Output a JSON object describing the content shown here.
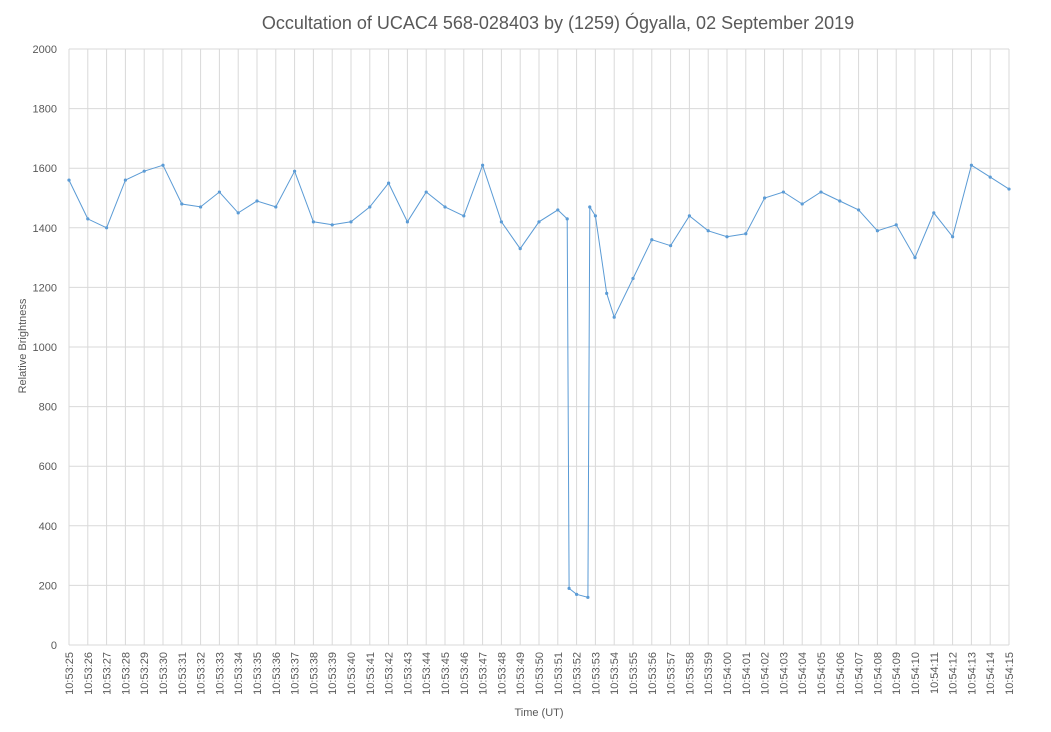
{
  "chart_data": {
    "type": "line",
    "title": "Occultation of UCAC4 568-028403 by (1259) Ógyalla, 02 September 2019",
    "xlabel": "Time (UT)",
    "ylabel": "Relative Brightness",
    "ylim": [
      0,
      2000
    ],
    "yticks": [
      0,
      200,
      400,
      600,
      800,
      1000,
      1200,
      1400,
      1600,
      1800,
      2000
    ],
    "x_start": "10:53:25",
    "x_end": "10:54:15",
    "xticks": [
      "10:53:25",
      "10:53:26",
      "10:53:27",
      "10:53:28",
      "10:53:29",
      "10:53:30",
      "10:53:31",
      "10:53:32",
      "10:53:33",
      "10:53:34",
      "10:53:35",
      "10:53:36",
      "10:53:37",
      "10:53:38",
      "10:53:39",
      "10:53:40",
      "10:53:41",
      "10:53:42",
      "10:53:43",
      "10:53:44",
      "10:53:45",
      "10:53:46",
      "10:53:47",
      "10:53:48",
      "10:53:49",
      "10:53:50",
      "10:53:51",
      "10:53:52",
      "10:53:53",
      "10:53:54",
      "10:53:55",
      "10:53:56",
      "10:53:57",
      "10:53:58",
      "10:53:59",
      "10:54:00",
      "10:54:01",
      "10:54:02",
      "10:54:03",
      "10:54:04",
      "10:54:05",
      "10:54:06",
      "10:54:07",
      "10:54:08",
      "10:54:09",
      "10:54:10",
      "10:54:11",
      "10:54:12",
      "10:54:13",
      "10:54:14",
      "10:54:15"
    ],
    "grid": true,
    "legend": "none",
    "color": "#5B9BD5",
    "series": [
      {
        "x": [
          "10:53:25",
          "10:53:26",
          "10:53:27",
          "10:53:28",
          "10:53:29",
          "10:53:30",
          "10:53:31",
          "10:53:32",
          "10:53:33",
          "10:53:34",
          "10:53:35",
          "10:53:36",
          "10:53:37",
          "10:53:38",
          "10:53:39",
          "10:53:40",
          "10:53:41",
          "10:53:42",
          "10:53:43",
          "10:53:44",
          "10:53:45",
          "10:53:46",
          "10:53:47",
          "10:53:48",
          "10:53:49",
          "10:53:50",
          "10:53:51",
          "10:53:51.5",
          "10:53:51.6",
          "10:53:52",
          "10:53:52.6",
          "10:53:52.7",
          "10:53:53",
          "10:53:53.6",
          "10:53:54",
          "10:53:55",
          "10:53:56",
          "10:53:57",
          "10:53:58",
          "10:53:59",
          "10:54:00",
          "10:54:01",
          "10:54:02",
          "10:54:03",
          "10:54:04",
          "10:54:05",
          "10:54:06",
          "10:54:07",
          "10:54:08",
          "10:54:09",
          "10:54:10",
          "10:54:11",
          "10:54:12",
          "10:54:13",
          "10:54:14",
          "10:54:15"
        ],
        "values": [
          1560,
          1430,
          1400,
          1560,
          1590,
          1610,
          1480,
          1470,
          1520,
          1450,
          1490,
          1470,
          1590,
          1420,
          1410,
          1420,
          1470,
          1550,
          1420,
          1520,
          1470,
          1440,
          1610,
          1420,
          1330,
          1420,
          1460,
          1430,
          190,
          170,
          160,
          1470,
          1440,
          1180,
          1100,
          1230,
          1360,
          1340,
          1440,
          1390,
          1370,
          1380,
          1500,
          1520,
          1480,
          1520,
          1490,
          1460,
          1390,
          1410,
          1300,
          1450,
          1370,
          1610,
          1570,
          1530
        ]
      }
    ]
  }
}
